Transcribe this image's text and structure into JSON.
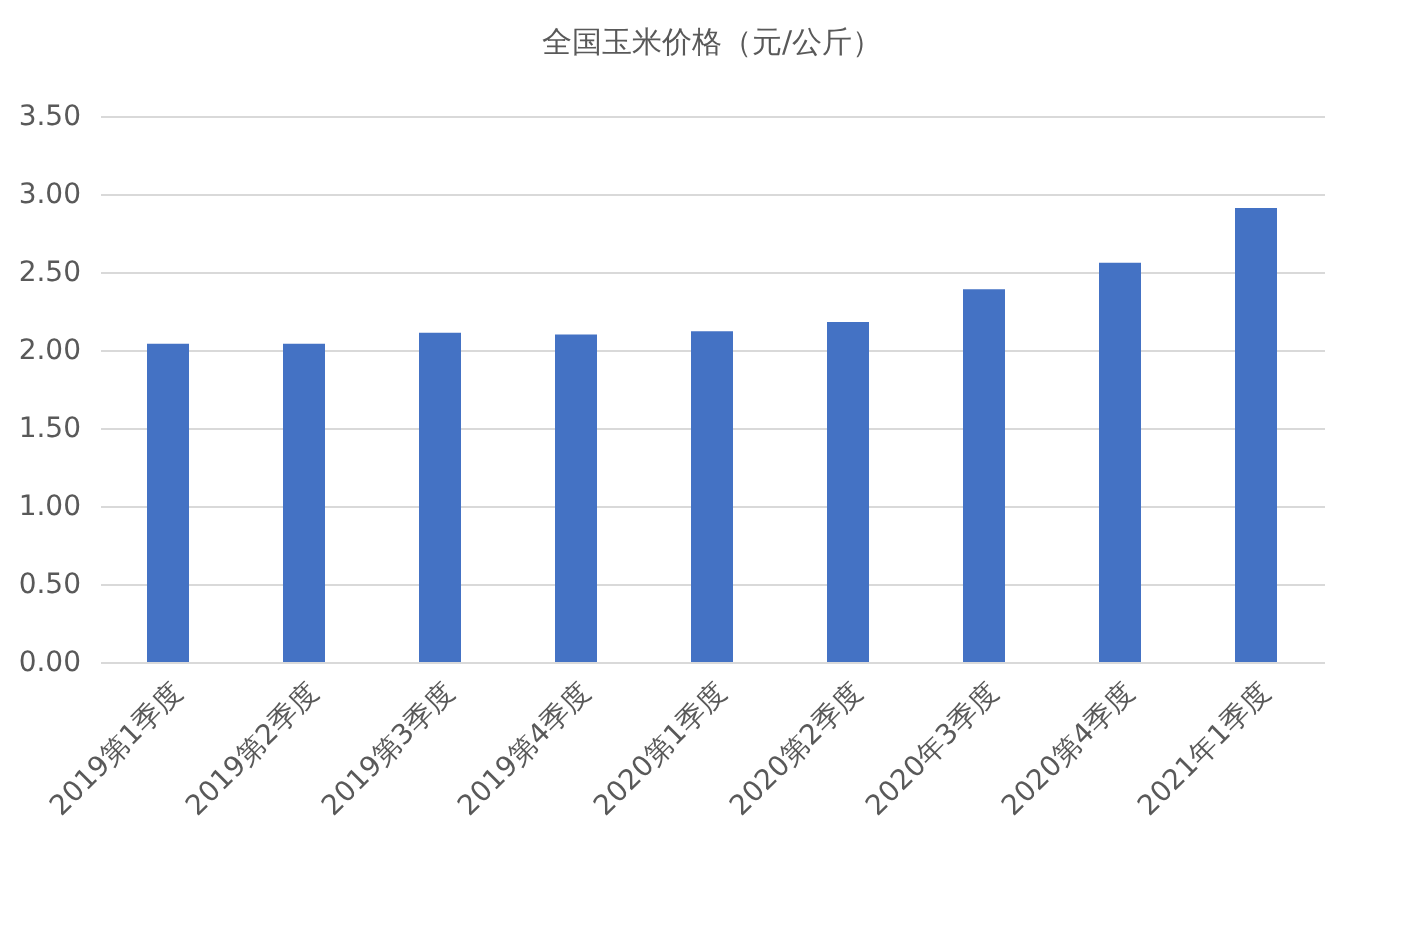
{
  "chart_data": {
    "type": "bar",
    "title": "全国玉米价格（元/公斤）",
    "categories": [
      "2019第1季度",
      "2019第2季度",
      "2019第3季度",
      "2019第4季度",
      "2020第1季度",
      "2020第2季度",
      "2020年3季度",
      "2020第4季度",
      "2021年1季度"
    ],
    "values": [
      2.04,
      2.04,
      2.11,
      2.1,
      2.12,
      2.18,
      2.39,
      2.56,
      2.91
    ],
    "color": "#4472c4",
    "ylim": [
      0,
      3.5
    ],
    "yticks": [
      {
        "value": 0,
        "label": "0.00"
      },
      {
        "value": 0.5,
        "label": "0.50"
      },
      {
        "value": 1,
        "label": "1.00"
      },
      {
        "value": 1.5,
        "label": "1.50"
      },
      {
        "value": 2,
        "label": "2.00"
      },
      {
        "value": 2.5,
        "label": "2.50"
      },
      {
        "value": 3,
        "label": "3.00"
      },
      {
        "value": 3.5,
        "label": "3.50"
      }
    ],
    "grid": "y"
  }
}
